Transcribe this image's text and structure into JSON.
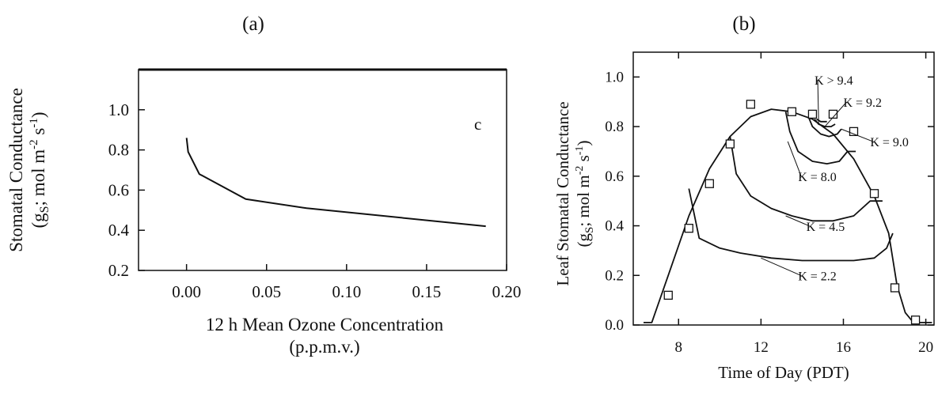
{
  "figure": {
    "panel_a_label": "(a)",
    "panel_b_label": "(b)"
  },
  "chart_data": [
    {
      "type": "line",
      "panel_letter": "c",
      "xlabel_line1": "12 h Mean Ozone Concentration",
      "xlabel_line2": "(p.p.m.v.)",
      "ylabel_line1": "Stomatal Conductance",
      "ylabel_line2": "(gS; mol m-2 s-1)",
      "xlim": [
        -0.03,
        0.2
      ],
      "ylim": [
        0.2,
        1.2
      ],
      "x_ticks": [
        0.0,
        0.05,
        0.1,
        0.15,
        0.2
      ],
      "x_tick_labels": [
        "0.00",
        "0.05",
        "0.10",
        "0.15",
        "0.20"
      ],
      "y_ticks": [
        0.2,
        0.4,
        0.6,
        0.8,
        1.0
      ],
      "y_tick_labels": [
        "0.2",
        "0.4",
        "0.6",
        "0.8",
        "1.0"
      ],
      "grid": false,
      "series": [
        {
          "x": [
            0.0,
            0.001,
            0.008,
            0.037,
            0.075,
            0.187
          ],
          "y": [
            0.86,
            0.79,
            0.68,
            0.555,
            0.51,
            0.42
          ]
        }
      ]
    },
    {
      "type": "line",
      "xlabel": "Time of Day (PDT)",
      "ylabel_line1": "Leaf Stomatal Conductance",
      "ylabel_line2": "(gS; mol m-2 s-1)",
      "xlim": [
        5.8,
        20.4
      ],
      "ylim": [
        0.0,
        1.1
      ],
      "x_ticks": [
        8,
        12,
        16,
        20
      ],
      "x_tick_labels": [
        "8",
        "12",
        "16",
        "20"
      ],
      "y_ticks": [
        0.0,
        0.2,
        0.4,
        0.6,
        0.8,
        1.0
      ],
      "y_tick_labels": [
        "0.0",
        "0.2",
        "0.4",
        "0.6",
        "0.8",
        "1.0"
      ],
      "grid": false,
      "series": [
        {
          "label": "",
          "x": [
            6.3,
            6.7,
            7.5,
            8.5,
            9.5,
            10.5,
            11.5,
            12.5,
            13.5,
            14.5,
            15.5,
            16.5,
            17.5,
            18.2,
            18.6,
            19.0,
            19.4,
            19.8,
            20.3
          ],
          "y": [
            0.01,
            0.01,
            0.2,
            0.44,
            0.63,
            0.76,
            0.84,
            0.87,
            0.86,
            0.83,
            0.77,
            0.67,
            0.52,
            0.37,
            0.16,
            0.05,
            0.01,
            0.01,
            0.01
          ]
        },
        {
          "label": "K = 2.2",
          "x": [
            8.5,
            9.0,
            10.0,
            11.0,
            12.5,
            14.0,
            15.5,
            16.5,
            17.5,
            18.1,
            18.4
          ],
          "y": [
            0.55,
            0.35,
            0.31,
            0.29,
            0.27,
            0.26,
            0.26,
            0.26,
            0.27,
            0.31,
            0.37
          ]
        },
        {
          "label": "K = 4.5",
          "x": [
            10.5,
            10.8,
            11.5,
            12.5,
            13.5,
            14.5,
            15.5,
            16.5,
            17.3,
            17.9
          ],
          "y": [
            0.76,
            0.61,
            0.52,
            0.47,
            0.44,
            0.42,
            0.42,
            0.44,
            0.5,
            0.5
          ]
        },
        {
          "label": "K = 8.0",
          "x": [
            13.2,
            13.4,
            13.8,
            14.5,
            15.2,
            15.8,
            16.2,
            16.6
          ],
          "y": [
            0.86,
            0.78,
            0.7,
            0.66,
            0.65,
            0.66,
            0.7,
            0.7
          ]
        },
        {
          "label": "K = 9.0",
          "x": [
            14.3,
            14.5,
            14.9,
            15.3,
            15.7,
            15.9
          ],
          "y": [
            0.84,
            0.8,
            0.77,
            0.76,
            0.77,
            0.79
          ]
        },
        {
          "label": "K = 9.2",
          "x": [
            14.6,
            14.8,
            15.1,
            15.4,
            15.6
          ],
          "y": [
            0.83,
            0.81,
            0.8,
            0.8,
            0.81
          ]
        },
        {
          "label": "K > 9.4",
          "x": [
            14.7,
            14.9,
            15.2
          ],
          "y": [
            0.83,
            0.82,
            0.82
          ]
        }
      ],
      "observed_points": {
        "x": [
          7.5,
          8.5,
          9.5,
          10.5,
          11.5,
          13.5,
          14.5,
          15.5,
          16.5,
          17.5,
          18.5,
          19.5
        ],
        "y": [
          0.12,
          0.39,
          0.57,
          0.73,
          0.89,
          0.86,
          0.85,
          0.85,
          0.78,
          0.53,
          0.15,
          0.02
        ]
      },
      "annotations": [
        {
          "text": "K > 9.4",
          "x": 14.6,
          "y": 0.97,
          "tip_x": 14.8,
          "tip_y": 0.81
        },
        {
          "text": "K = 9.2",
          "x": 16.0,
          "y": 0.88,
          "tip_x": 15.1,
          "tip_y": 0.8
        },
        {
          "text": "K = 9.0",
          "x": 17.3,
          "y": 0.72,
          "tip_x": 15.9,
          "tip_y": 0.79
        },
        {
          "text": "K = 8.0",
          "x": 13.8,
          "y": 0.58,
          "tip_x": 13.3,
          "tip_y": 0.74
        },
        {
          "text": "K = 4.5",
          "x": 14.2,
          "y": 0.38,
          "tip_x": 13.2,
          "tip_y": 0.44
        },
        {
          "text": "K = 2.2",
          "x": 13.8,
          "y": 0.18,
          "tip_x": 12.0,
          "tip_y": 0.27
        }
      ]
    }
  ]
}
